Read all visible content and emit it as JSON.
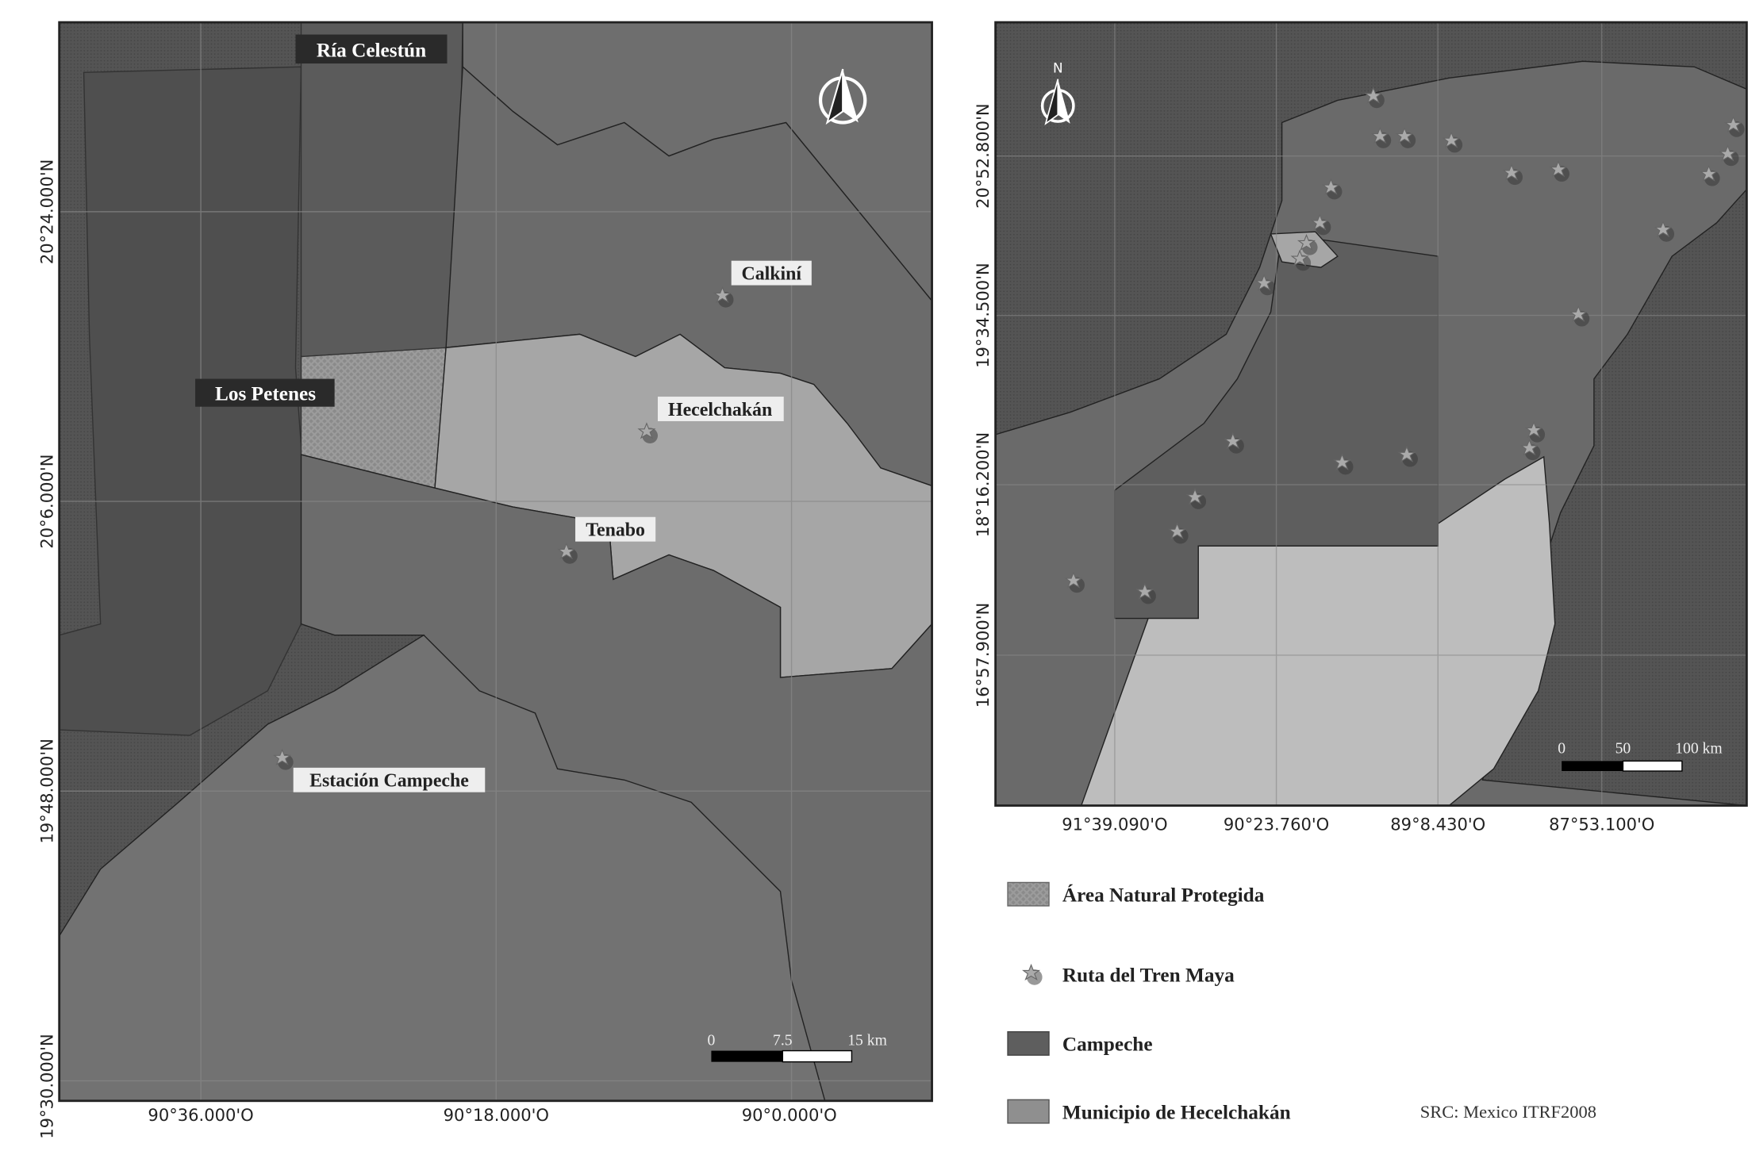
{
  "left_map": {
    "labels": {
      "ria_celestun": "Ría Celestún",
      "los_petenes": "Los Petenes",
      "calkini": "Calkiní",
      "hecelchakan": "Hecelchakán",
      "tenabo": "Tenabo",
      "estacion_campeche": "Estación Campeche"
    },
    "lat_ticks": [
      "20°24.000'N",
      "20°6.000'N",
      "19°48.000'N",
      "19°30.000'N"
    ],
    "lon_ticks": [
      "90°36.000'O",
      "90°18.000'O",
      "90°0.000'O"
    ],
    "scale_bar": [
      "0",
      "7.5",
      "15 km"
    ],
    "north_arrow": "north-arrow-icon"
  },
  "right_map": {
    "north_label": "N",
    "lat_ticks": [
      "20°52.800'N",
      "19°34.500'N",
      "18°16.200'N",
      "16°57.900'N"
    ],
    "lon_ticks": [
      "91°39.090'O",
      "90°23.760'O",
      "89°8.430'O",
      "87°53.100'O"
    ],
    "scale_bar": [
      "0",
      "50",
      "100 km"
    ]
  },
  "legend": {
    "items": [
      {
        "label": "Área Natural Protegida",
        "icon": "hatched-swatch"
      },
      {
        "label": "Ruta del Tren Maya",
        "icon": "star-icon"
      },
      {
        "label": "Campeche",
        "icon": "dark-swatch"
      },
      {
        "label": "Municipio de Hecelchakán",
        "icon": "light-swatch"
      }
    ],
    "crs": "SRC: Mexico ITRF2008"
  },
  "colors": {
    "sea": "#505050",
    "campeche": "#5e5e5e",
    "municipalities": "#6f6f6f",
    "hecelchakan": "#a6a6a6",
    "anp": "#4d4d4d",
    "other_states": "#bdbdbd"
  }
}
